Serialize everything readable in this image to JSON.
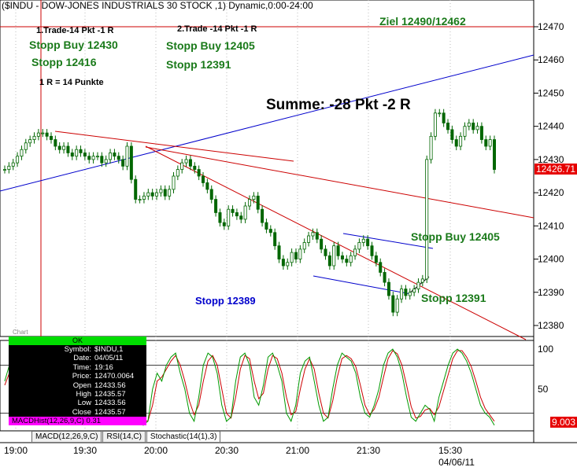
{
  "title": "($INDU - DOW-JONES INDUSTRIALS 30 STOCK ,1) Dynamic,0:00-24:00",
  "annotations": {
    "trade1": "1.Trade-14 Pkt -1 R",
    "trade2": "2.Trade -14 Pkt -1 R",
    "stopp_buy_1": "Stopp Buy 12430",
    "stopp_1": "Stopp 12416",
    "r_note": "1 R = 14 Punkte",
    "stopp_buy_2": "Stopp Buy 12405",
    "stopp_2": "Stopp 12391",
    "ziel": "Ziel 12490/12462",
    "summe": "Summe: -28 Pkt -2 R",
    "stopp_buy_3": "Stopp Buy 12405",
    "stopp_blue": "Stopp 12389",
    "stopp_3": "Stopp 12391",
    "label_chart": "Chart"
  },
  "colors": {
    "red": "#cc0000",
    "blue": "#0000cc",
    "green": "#1a7a1a",
    "candle": "#006600"
  },
  "last_price": "12426.71",
  "stoch_value": "9.003",
  "info_box": {
    "ok": "OK",
    "rows": [
      {
        "k": "Symbol:",
        "v": "$INDU,1"
      },
      {
        "k": "Date:",
        "v": "04/05/11"
      },
      {
        "k": "Time:",
        "v": "19:16"
      },
      {
        "k": "Price:",
        "v": "12470.0064"
      },
      {
        "k": "Open",
        "v": "12433.56"
      },
      {
        "k": "High",
        "v": "12435.57"
      },
      {
        "k": "Low",
        "v": "12433.56"
      },
      {
        "k": "Close",
        "v": "12435.57"
      }
    ],
    "macd": "MACDHist(12,26,9,C) 0.31"
  },
  "tabs": [
    "MACD(12,26,9,C)",
    "RSI(14,C)",
    "Stochastic(14(1),3)"
  ],
  "chart_data": {
    "type": "candlestick",
    "price_axis": {
      "ticks": [
        12380,
        12390,
        12400,
        12410,
        12420,
        12430,
        12440,
        12450,
        12460,
        12470
      ],
      "range": [
        12376,
        12479
      ]
    },
    "time_axis": {
      "labels": [
        "19:00",
        "19:30",
        "20:00",
        "20:30",
        "21:00",
        "21:30",
        "15:30"
      ],
      "date_label": "04/06/11"
    },
    "close_series": [
      12427,
      12428,
      12429,
      12431,
      12433,
      12435,
      12436,
      12437,
      12438,
      12438,
      12437,
      12436,
      12434,
      12433,
      12434,
      12432,
      12431,
      12433,
      12432,
      12431,
      12430,
      12431,
      12431,
      12429,
      12430,
      12432,
      12431,
      12430,
      12428,
      12434,
      12424,
      12418,
      12418,
      12419,
      12420,
      12419,
      12420,
      12421,
      12419,
      12421,
      12425,
      12427,
      12429,
      12430,
      12428,
      12427,
      12425,
      12423,
      12421,
      12418,
      12414,
      12411,
      12410,
      12415,
      12414,
      12413,
      12412,
      12416,
      12418,
      12419,
      12415,
      12411,
      12409,
      12408,
      12404,
      12400,
      12398,
      12399,
      12402,
      12400,
      12403,
      12405,
      12407,
      12408,
      12406,
      12403,
      12401,
      12398,
      12404,
      12401,
      12400,
      12399,
      12401,
      12403,
      12405,
      12406,
      12404,
      12401,
      12399,
      12396,
      12393,
      12389,
      12384,
      12388,
      12391,
      12389,
      12390,
      12391,
      12393,
      12394,
      12430,
      12437,
      12444,
      12444,
      12441,
      12439,
      12436,
      12434,
      12437,
      12440,
      12441,
      12439,
      12440,
      12436,
      12434,
      12436,
      12427
    ],
    "stochastic": {
      "axis_ticks": [
        100,
        50
      ],
      "range": [
        0,
        110
      ],
      "levels": [
        80,
        20
      ],
      "k": [
        60,
        80,
        70,
        20,
        15,
        40,
        85,
        95,
        90,
        70,
        50,
        75,
        60,
        30,
        20,
        40,
        35,
        45,
        60,
        80,
        90,
        70,
        40,
        20,
        30,
        60,
        75,
        50,
        70,
        10,
        5,
        10,
        50,
        70,
        60,
        80,
        90,
        95,
        70,
        50,
        20,
        10,
        40,
        80,
        95,
        90,
        70,
        30,
        10,
        15,
        60,
        90,
        95,
        80,
        40,
        30,
        55,
        90,
        95,
        80,
        60,
        20,
        10,
        30,
        70,
        85,
        90,
        60,
        30,
        10,
        15,
        50,
        80,
        95,
        90,
        85,
        70,
        40,
        20,
        15,
        30,
        50,
        80,
        95,
        100,
        90,
        70,
        40,
        15,
        10,
        20,
        30,
        25,
        10,
        40,
        60,
        80,
        95,
        100,
        95,
        85,
        70,
        50,
        30,
        20,
        15,
        5
      ],
      "d": [
        55,
        70,
        75,
        50,
        30,
        30,
        60,
        85,
        92,
        80,
        60,
        65,
        65,
        45,
        30,
        35,
        38,
        42,
        52,
        70,
        85,
        80,
        55,
        30,
        28,
        45,
        65,
        60,
        65,
        30,
        12,
        10,
        30,
        60,
        65,
        75,
        85,
        92,
        80,
        60,
        35,
        18,
        30,
        60,
        85,
        92,
        80,
        50,
        20,
        14,
        40,
        75,
        92,
        88,
        60,
        38,
        45,
        75,
        92,
        88,
        70,
        40,
        18,
        22,
        50,
        75,
        88,
        75,
        45,
        20,
        14,
        35,
        65,
        88,
        92,
        88,
        78,
        55,
        30,
        18,
        25,
        40,
        65,
        88,
        98,
        94,
        80,
        55,
        28,
        14,
        16,
        24,
        26,
        18,
        28,
        48,
        68,
        88,
        98,
        98,
        90,
        78,
        60,
        40,
        26,
        18,
        10
      ]
    }
  }
}
